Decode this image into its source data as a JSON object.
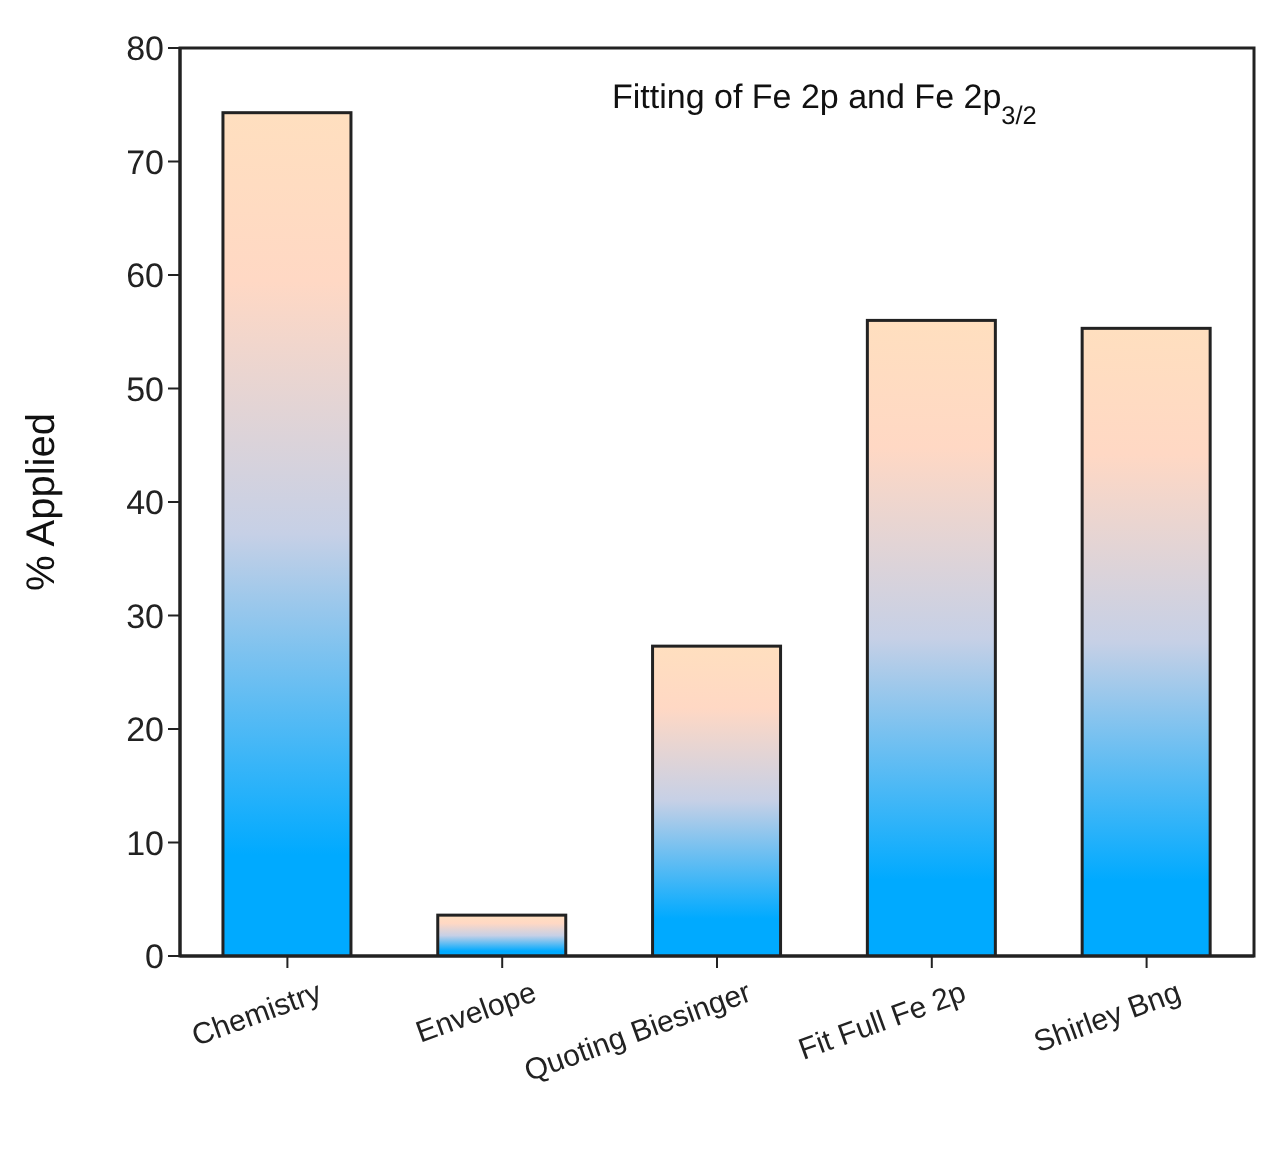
{
  "chart_data": {
    "type": "bar",
    "title": "Fitting of Fe 2p and Fe 2p$_{3/2}$",
    "ylabel": "% Applied",
    "categories": [
      "Chemistry",
      "Envelope",
      "Quoting Biesinger",
      "Fit Full Fe 2p",
      "Shirley Bng"
    ],
    "values": [
      74.3,
      3.6,
      27.3,
      56.0,
      55.3
    ],
    "color": "#00aaff",
    "ylim": [
      0,
      80
    ],
    "yticks": [
      0,
      10,
      20,
      30,
      40,
      50,
      60,
      70,
      80
    ]
  }
}
